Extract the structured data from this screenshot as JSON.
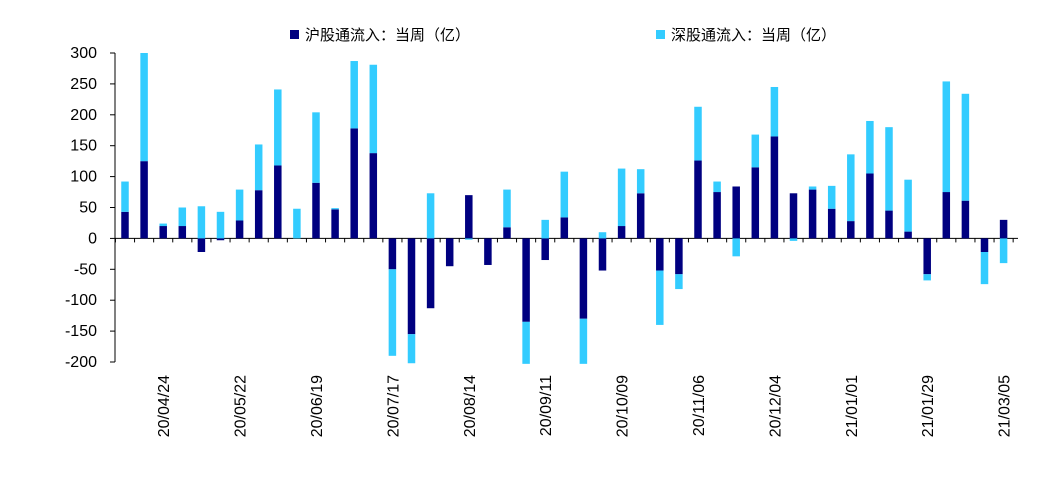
{
  "chart_data": {
    "type": "bar",
    "stacked": true,
    "title": "",
    "xlabel": "",
    "ylabel": "",
    "ylim": [
      -200,
      300
    ],
    "yticks": [
      300,
      250,
      200,
      150,
      100,
      50,
      0,
      -50,
      -100,
      -150,
      -200
    ],
    "ytick_labels": [
      "300",
      "250",
      "200",
      "150",
      "100",
      "50",
      "0",
      "-50",
      "-100",
      "-150",
      "-200"
    ],
    "x_tick_labels": [
      "20/04/24",
      "20/05/22",
      "20/06/19",
      "20/07/17",
      "20/08/14",
      "20/09/11",
      "20/10/09",
      "20/11/06",
      "20/12/04",
      "21/01/01",
      "21/01/29",
      "21/03/05"
    ],
    "x_tick_index": [
      2,
      6,
      10,
      14,
      18,
      22,
      26,
      30,
      34,
      38,
      42,
      46
    ],
    "legend_position": "top",
    "colors": {
      "shanghai": "#000080",
      "shenzhen": "#33CCFF"
    },
    "series": [
      {
        "name": "沪股通流入：当周（亿）",
        "values": [
          43,
          125,
          20,
          20,
          -22,
          -3,
          29,
          78,
          118,
          0,
          90,
          47,
          178,
          138,
          -50,
          -155,
          -113,
          -45,
          70,
          -43,
          18,
          -135,
          -35,
          34,
          -130,
          -52,
          20,
          73,
          -52,
          -58,
          126,
          75,
          84,
          115,
          165,
          73,
          79,
          48,
          28,
          105,
          45,
          11,
          -58,
          75,
          61,
          -22,
          30
        ]
      },
      {
        "name": "深股通流入：当周（亿）",
        "values": [
          49,
          175,
          4,
          30,
          52,
          43,
          50,
          74,
          123,
          48,
          114,
          2,
          109,
          143,
          -140,
          -47,
          73,
          0,
          -2,
          0,
          61,
          -68,
          30,
          74,
          -73,
          10,
          93,
          39,
          -88,
          -24,
          87,
          17,
          -29,
          53,
          80,
          -4,
          5,
          37,
          108,
          85,
          135,
          84,
          -10,
          179,
          173,
          -52,
          -40
        ]
      }
    ]
  }
}
